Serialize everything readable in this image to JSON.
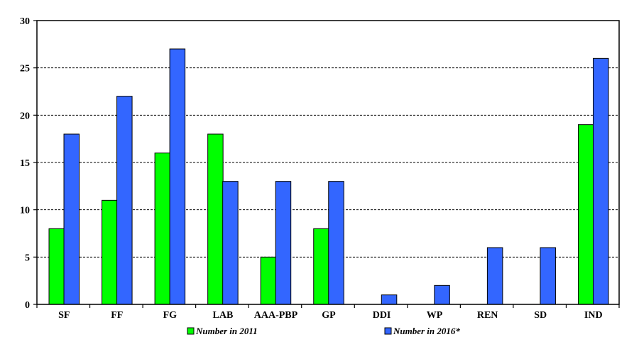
{
  "chart_data": {
    "type": "bar",
    "categories": [
      "SF",
      "FF",
      "FG",
      "LAB",
      "AAA-PBP",
      "GP",
      "DDI",
      "WP",
      "REN",
      "SD",
      "IND"
    ],
    "series": [
      {
        "name": "Number in 2011",
        "color": "#00ff00",
        "values": [
          8,
          11,
          16,
          18,
          5,
          8,
          0,
          0,
          0,
          0,
          19
        ]
      },
      {
        "name": "Number in 2016*",
        "color": "#3366ff",
        "values": [
          18,
          22,
          27,
          13,
          13,
          13,
          1,
          2,
          6,
          6,
          26
        ]
      }
    ],
    "title": "",
    "xlabel": "",
    "ylabel": "",
    "ylim": [
      0,
      30
    ],
    "yticks": [
      0,
      5,
      10,
      15,
      20,
      25,
      30
    ],
    "grid": true,
    "legend_position": "bottom"
  }
}
